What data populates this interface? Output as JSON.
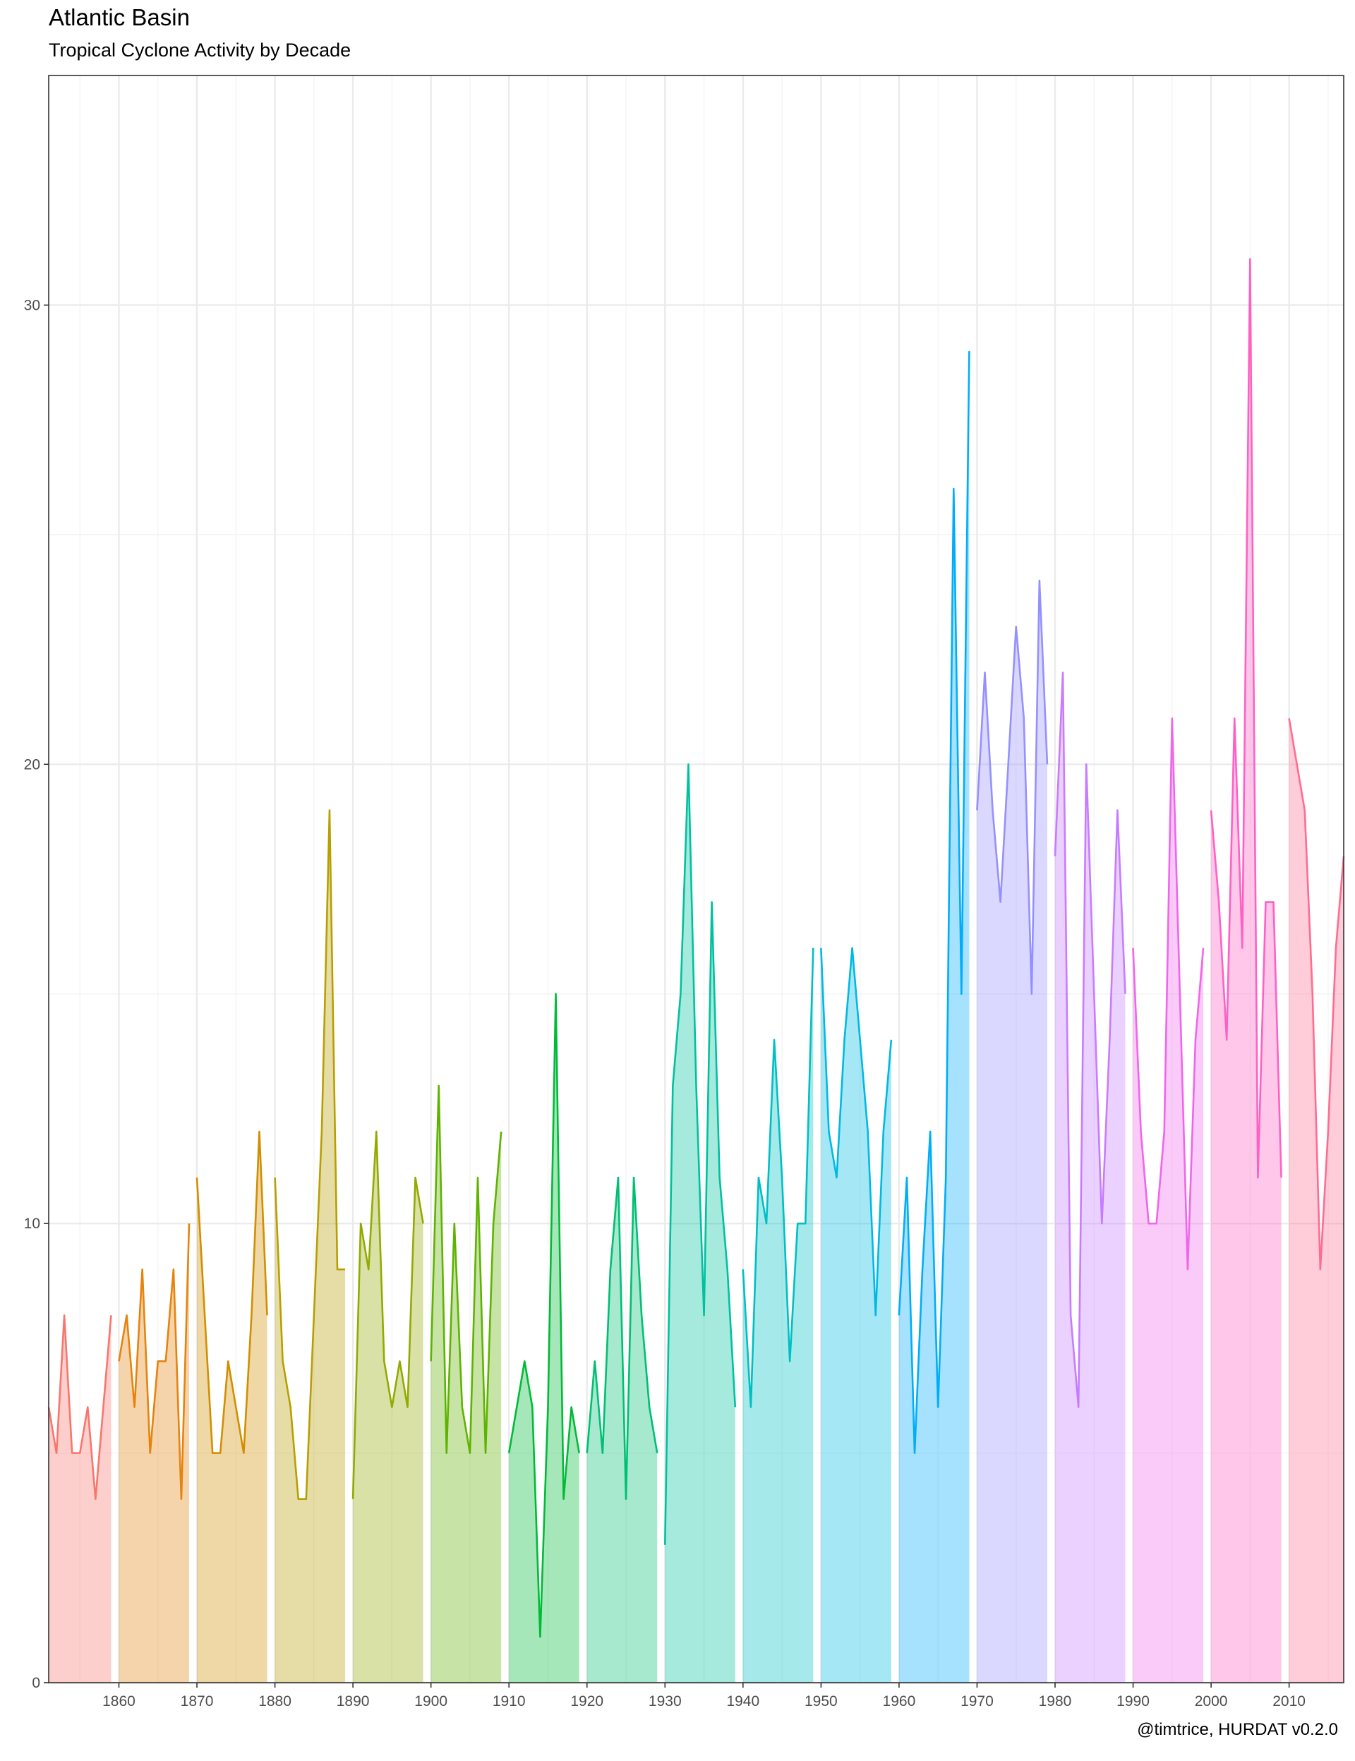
{
  "title": "Atlantic Basin",
  "subtitle": "Tropical Cyclone Activity by Decade",
  "caption": "@timtrice, HURDAT v0.2.0",
  "chart_data": {
    "type": "area",
    "title": "Atlantic Basin",
    "subtitle": "Tropical Cyclone Activity by Decade",
    "xlabel": "",
    "ylabel": "",
    "xlim": [
      1851,
      2017
    ],
    "ylim": [
      0,
      35
    ],
    "x_ticks": [
      1860,
      1870,
      1880,
      1890,
      1900,
      1910,
      1920,
      1930,
      1940,
      1950,
      1960,
      1970,
      1980,
      1990,
      2000,
      2010
    ],
    "y_ticks": [
      0,
      10,
      20,
      30
    ],
    "grid": true,
    "legend": "none",
    "series": [
      {
        "decade": 1850,
        "color": "#F8766D",
        "x": [
          1851,
          1852,
          1853,
          1854,
          1855,
          1856,
          1857,
          1858,
          1859
        ],
        "values": [
          6,
          5,
          8,
          5,
          5,
          6,
          4,
          6,
          8
        ]
      },
      {
        "decade": 1860,
        "color": "#E6830D",
        "x": [
          1860,
          1861,
          1862,
          1863,
          1864,
          1865,
          1866,
          1867,
          1868,
          1869
        ],
        "values": [
          7,
          8,
          6,
          9,
          5,
          7,
          7,
          9,
          4,
          10
        ]
      },
      {
        "decade": 1870,
        "color": "#D18F00",
        "x": [
          1870,
          1871,
          1872,
          1873,
          1874,
          1875,
          1876,
          1877,
          1878,
          1879
        ],
        "values": [
          11,
          8,
          5,
          5,
          7,
          6,
          5,
          8,
          12,
          8
        ]
      },
      {
        "decade": 1880,
        "color": "#B79F00",
        "x": [
          1880,
          1881,
          1882,
          1883,
          1884,
          1885,
          1886,
          1887,
          1888,
          1889
        ],
        "values": [
          11,
          7,
          6,
          4,
          4,
          8,
          12,
          19,
          9,
          9
        ]
      },
      {
        "decade": 1890,
        "color": "#93AA00",
        "x": [
          1890,
          1891,
          1892,
          1893,
          1894,
          1895,
          1896,
          1897,
          1898,
          1899
        ],
        "values": [
          4,
          10,
          9,
          12,
          7,
          6,
          7,
          6,
          11,
          10
        ]
      },
      {
        "decade": 1900,
        "color": "#5EB300",
        "x": [
          1900,
          1901,
          1902,
          1903,
          1904,
          1905,
          1906,
          1907,
          1908,
          1909
        ],
        "values": [
          7,
          13,
          5,
          10,
          6,
          5,
          11,
          5,
          10,
          12
        ]
      },
      {
        "decade": 1910,
        "color": "#00BA38",
        "x": [
          1910,
          1911,
          1912,
          1913,
          1914,
          1915,
          1916,
          1917,
          1918,
          1919
        ],
        "values": [
          5,
          6,
          7,
          6,
          1,
          6,
          15,
          4,
          6,
          5
        ]
      },
      {
        "decade": 1920,
        "color": "#00BF74",
        "x": [
          1920,
          1921,
          1922,
          1923,
          1924,
          1925,
          1926,
          1927,
          1928,
          1929
        ],
        "values": [
          5,
          7,
          5,
          9,
          11,
          4,
          11,
          8,
          6,
          5
        ]
      },
      {
        "decade": 1930,
        "color": "#00C19F",
        "x": [
          1930,
          1931,
          1932,
          1933,
          1934,
          1935,
          1936,
          1937,
          1938,
          1939
        ],
        "values": [
          3,
          13,
          15,
          20,
          13,
          8,
          17,
          11,
          9,
          6
        ]
      },
      {
        "decade": 1940,
        "color": "#00BFC4",
        "x": [
          1940,
          1941,
          1942,
          1943,
          1944,
          1945,
          1946,
          1947,
          1948,
          1949
        ],
        "values": [
          9,
          6,
          11,
          10,
          14,
          11,
          7,
          10,
          10,
          16
        ]
      },
      {
        "decade": 1950,
        "color": "#00B9E3",
        "x": [
          1950,
          1951,
          1952,
          1953,
          1954,
          1955,
          1956,
          1957,
          1958,
          1959
        ],
        "values": [
          16,
          12,
          11,
          14,
          16,
          14,
          12,
          8,
          12,
          14
        ]
      },
      {
        "decade": 1960,
        "color": "#00ADFA",
        "x": [
          1960,
          1961,
          1962,
          1963,
          1964,
          1965,
          1966,
          1967,
          1968,
          1969
        ],
        "values": [
          8,
          11,
          5,
          9,
          12,
          6,
          11,
          26,
          15,
          29
        ]
      },
      {
        "decade": 1970,
        "color": "#9590FF",
        "x": [
          1970,
          1971,
          1972,
          1973,
          1974,
          1975,
          1976,
          1977,
          1978,
          1979
        ],
        "values": [
          19,
          22,
          19,
          17,
          20,
          23,
          21,
          15,
          24,
          20
        ]
      },
      {
        "decade": 1980,
        "color": "#C77CFF",
        "x": [
          1980,
          1981,
          1982,
          1983,
          1984,
          1985,
          1986,
          1987,
          1988,
          1989
        ],
        "values": [
          18,
          22,
          8,
          6,
          20,
          15,
          10,
          14,
          19,
          15
        ]
      },
      {
        "decade": 1990,
        "color": "#F066EA",
        "x": [
          1990,
          1991,
          1992,
          1993,
          1994,
          1995,
          1996,
          1997,
          1998,
          1999
        ],
        "values": [
          16,
          12,
          10,
          10,
          12,
          21,
          15,
          9,
          14,
          16
        ]
      },
      {
        "decade": 2000,
        "color": "#FF61C3",
        "x": [
          2000,
          2001,
          2002,
          2003,
          2004,
          2005,
          2006,
          2007,
          2008,
          2009
        ],
        "values": [
          19,
          17,
          14,
          21,
          16,
          31,
          11,
          17,
          17,
          11
        ]
      },
      {
        "decade": 2010,
        "color": "#FF6C91",
        "x": [
          2010,
          2011,
          2012,
          2013,
          2014,
          2015,
          2016,
          2017
        ],
        "values": [
          21,
          20,
          19,
          15,
          9,
          12,
          16,
          18
        ]
      }
    ]
  }
}
